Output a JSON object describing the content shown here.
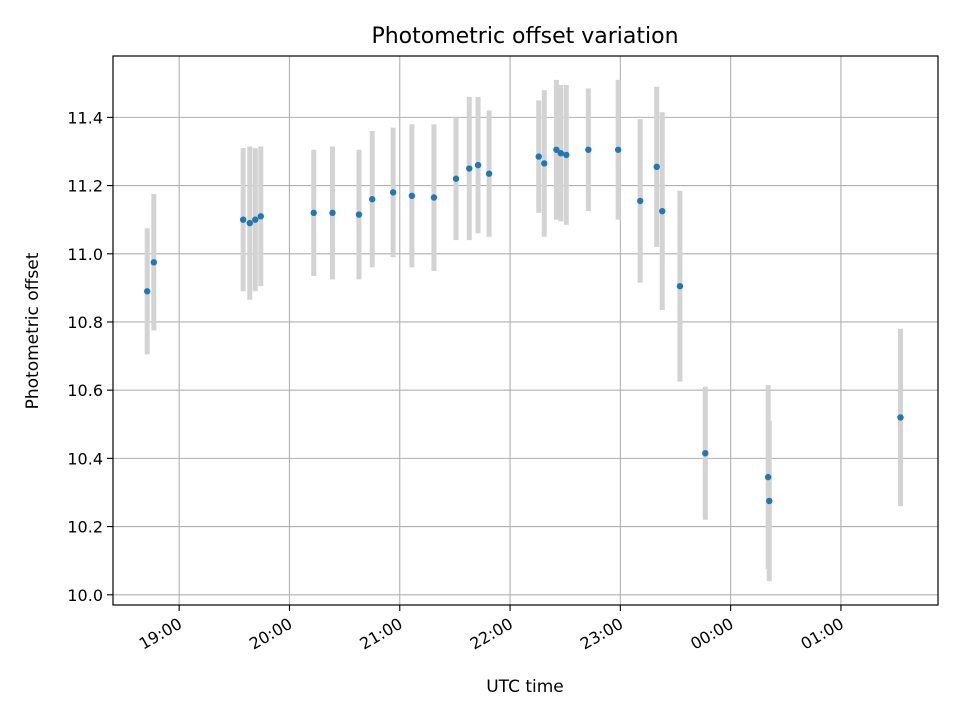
{
  "chart_data": {
    "type": "scatter",
    "title": "Photometric offset variation",
    "xlabel": "UTC time",
    "ylabel": "Photometric offset",
    "xlim_hours": [
      18.4,
      25.88
    ],
    "ylim": [
      9.97,
      11.58
    ],
    "grid": true,
    "x_ticks": [
      {
        "label": "19:00",
        "value": 19.0
      },
      {
        "label": "20:00",
        "value": 20.0
      },
      {
        "label": "21:00",
        "value": 21.0
      },
      {
        "label": "22:00",
        "value": 22.0
      },
      {
        "label": "23:00",
        "value": 23.0
      },
      {
        "label": "00:00",
        "value": 24.0
      },
      {
        "label": "01:00",
        "value": 25.0
      }
    ],
    "y_ticks": [
      {
        "label": "10.0",
        "value": 10.0
      },
      {
        "label": "10.2",
        "value": 10.2
      },
      {
        "label": "10.4",
        "value": 10.4
      },
      {
        "label": "10.6",
        "value": 10.6
      },
      {
        "label": "10.8",
        "value": 10.8
      },
      {
        "label": "11.0",
        "value": 11.0
      },
      {
        "label": "11.2",
        "value": 11.2
      },
      {
        "label": "11.4",
        "value": 11.4
      }
    ],
    "colors": {
      "point": "#1f77b4",
      "errorbar": "#d3d3d3",
      "grid": "#b0b0b0"
    },
    "points": [
      {
        "x": 18.71,
        "y": 10.89,
        "err": 0.185
      },
      {
        "x": 18.77,
        "y": 10.975,
        "err": 0.2
      },
      {
        "x": 19.58,
        "y": 11.1,
        "err": 0.21
      },
      {
        "x": 19.64,
        "y": 11.09,
        "err": 0.225
      },
      {
        "x": 19.69,
        "y": 11.1,
        "err": 0.21
      },
      {
        "x": 19.74,
        "y": 11.11,
        "err": 0.205
      },
      {
        "x": 20.22,
        "y": 11.12,
        "err": 0.185
      },
      {
        "x": 20.39,
        "y": 11.12,
        "err": 0.195
      },
      {
        "x": 20.63,
        "y": 11.115,
        "err": 0.19
      },
      {
        "x": 20.75,
        "y": 11.16,
        "err": 0.2
      },
      {
        "x": 20.94,
        "y": 11.18,
        "err": 0.19
      },
      {
        "x": 21.11,
        "y": 11.17,
        "err": 0.21
      },
      {
        "x": 21.31,
        "y": 11.165,
        "err": 0.215
      },
      {
        "x": 21.51,
        "y": 11.22,
        "err": 0.18
      },
      {
        "x": 21.63,
        "y": 11.25,
        "err": 0.21
      },
      {
        "x": 21.71,
        "y": 11.26,
        "err": 0.2
      },
      {
        "x": 21.81,
        "y": 11.235,
        "err": 0.185
      },
      {
        "x": 22.26,
        "y": 11.285,
        "err": 0.165
      },
      {
        "x": 22.31,
        "y": 11.265,
        "err": 0.215
      },
      {
        "x": 22.42,
        "y": 11.305,
        "err": 0.205
      },
      {
        "x": 22.46,
        "y": 11.295,
        "err": 0.2
      },
      {
        "x": 22.51,
        "y": 11.29,
        "err": 0.205
      },
      {
        "x": 22.71,
        "y": 11.305,
        "err": 0.18
      },
      {
        "x": 22.98,
        "y": 11.305,
        "err": 0.205
      },
      {
        "x": 23.18,
        "y": 11.155,
        "err": 0.24
      },
      {
        "x": 23.33,
        "y": 11.255,
        "err": 0.235
      },
      {
        "x": 23.38,
        "y": 11.125,
        "err": 0.29
      },
      {
        "x": 23.54,
        "y": 10.905,
        "err": 0.28
      },
      {
        "x": 23.77,
        "y": 10.415,
        "err": 0.195
      },
      {
        "x": 24.34,
        "y": 10.345,
        "err": 0.27
      },
      {
        "x": 24.35,
        "y": 10.275,
        "err": 0.235
      },
      {
        "x": 25.54,
        "y": 10.52,
        "err": 0.26
      }
    ]
  }
}
